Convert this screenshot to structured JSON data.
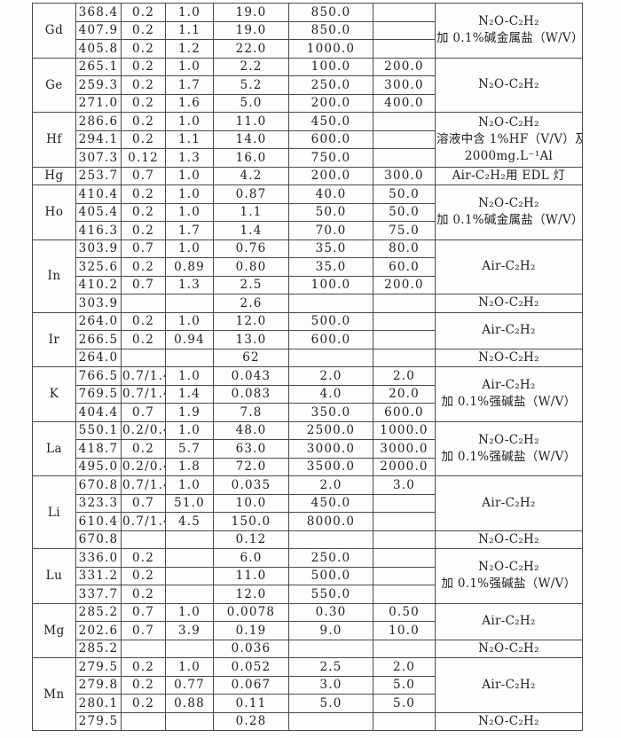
{
  "page": {
    "background": "#fdfdfd",
    "border_color": "#4a4a4a",
    "text_color": "#212121"
  },
  "table": {
    "groups": [
      {
        "element": "Gd",
        "rows": [
          [
            "368.4",
            "0.2",
            "1.0",
            "19.0",
            "850.0",
            ""
          ],
          [
            "407.9",
            "0.2",
            "1.1",
            "19.0",
            "850.0",
            ""
          ],
          [
            "405.8",
            "0.2",
            "1.2",
            "22.0",
            "1000.0",
            ""
          ]
        ],
        "notes": [
          {
            "span": 3,
            "lines": [
              "N₂O-C₂H₂",
              "加 0.1%碱金属盐（W/V）"
            ]
          }
        ]
      },
      {
        "element": "Ge",
        "rows": [
          [
            "265.1",
            "0.2",
            "1.0",
            "2.2",
            "100.0",
            "200.0"
          ],
          [
            "259.3",
            "0.2",
            "1.7",
            "5.2",
            "250.0",
            "300.0"
          ],
          [
            "271.0",
            "0.2",
            "1.6",
            "5.0",
            "200.0",
            "400.0"
          ]
        ],
        "notes": [
          {
            "span": 3,
            "lines": [
              "N₂O-C₂H₂"
            ]
          }
        ]
      },
      {
        "element": "Hf",
        "rows": [
          [
            "286.6",
            "0.2",
            "1.0",
            "11.0",
            "450.0",
            ""
          ],
          [
            "294.1",
            "0.2",
            "1.1",
            "14.0",
            "600.0",
            ""
          ],
          [
            "307.3",
            "0.12",
            "1.3",
            "16.0",
            "750.0",
            ""
          ]
        ],
        "notes": [
          {
            "span": 3,
            "lines": [
              "N₂O-C₂H₂",
              "溶液中含 1%HF（V/V）及",
              "2000mg.L⁻¹Al"
            ]
          }
        ]
      },
      {
        "element": "Hg",
        "rows": [
          [
            "253.7",
            "0.7",
            "1.0",
            "4.2",
            "200.0",
            "300.0"
          ]
        ],
        "notes": [
          {
            "span": 1,
            "lines": [
              "Air-C₂H₂用 EDL 灯"
            ]
          }
        ]
      },
      {
        "element": "Ho",
        "rows": [
          [
            "410.4",
            "0.2",
            "1.0",
            "0.87",
            "40.0",
            "50.0"
          ],
          [
            "405.4",
            "0.2",
            "1.0",
            "1.1",
            "50.0",
            "50.0"
          ],
          [
            "416.3",
            "0.2",
            "1.7",
            "1.4",
            "70.0",
            "75.0"
          ]
        ],
        "notes": [
          {
            "span": 3,
            "lines": [
              "N₂O-C₂H₂",
              "加 0.1%碱金属盐（W/V）"
            ]
          }
        ]
      },
      {
        "element": "In",
        "rows": [
          [
            "303.9",
            "0.7",
            "1.0",
            "0.76",
            "35.0",
            "80.0"
          ],
          [
            "325.6",
            "0.2",
            "0.89",
            "0.80",
            "35.0",
            "60.0"
          ],
          [
            "410.2",
            "0.7",
            "1.3",
            "2.5",
            "100.0",
            "200.0"
          ],
          [
            "303.9",
            "",
            "",
            "2.6",
            "",
            ""
          ]
        ],
        "notes": [
          {
            "span": 3,
            "lines": [
              "Air-C₂H₂"
            ]
          },
          {
            "span": 1,
            "lines": [
              "N₂O-C₂H₂"
            ]
          }
        ]
      },
      {
        "element": "Ir",
        "rows": [
          [
            "264.0",
            "0.2",
            "1.0",
            "12.0",
            "500.0",
            ""
          ],
          [
            "266.5",
            "0.2",
            "0.94",
            "13.0",
            "600.0",
            ""
          ],
          [
            "264.0",
            "",
            "",
            "62",
            "",
            ""
          ]
        ],
        "notes": [
          {
            "span": 2,
            "lines": [
              "Air-C₂H₂"
            ]
          },
          {
            "span": 1,
            "lines": [
              "N₂O-C₂H₂"
            ]
          }
        ]
      },
      {
        "element": "K",
        "rows": [
          [
            "766.5",
            "0.7/1.4",
            "1.0",
            "0.043",
            "2.0",
            "2.0"
          ],
          [
            "769.5",
            "0.7/1.4",
            "1.4",
            "0.083",
            "4.0",
            "20.0"
          ],
          [
            "404.4",
            "0.7",
            "1.9",
            "7.8",
            "350.0",
            "600.0"
          ]
        ],
        "notes": [
          {
            "span": 3,
            "lines": [
              "Air-C₂H₂",
              "加 0.1%强碱盐（W/V）"
            ]
          }
        ]
      },
      {
        "element": "La",
        "rows": [
          [
            "550.1",
            "0.2/0.4",
            "1.0",
            "48.0",
            "2500.0",
            "1000.0"
          ],
          [
            "418.7",
            "0.2",
            "5.7",
            "63.0",
            "3000.0",
            "3000.0"
          ],
          [
            "495.0",
            "0.2/0.4",
            "1.8",
            "72.0",
            "3500.0",
            "2000.0"
          ]
        ],
        "notes": [
          {
            "span": 3,
            "lines": [
              "N₂O-C₂H₂",
              "加 0.1%强碱盐（W/V）"
            ]
          }
        ]
      },
      {
        "element": "Li",
        "rows": [
          [
            "670.8",
            "0.7/1.4",
            "1.0",
            "0.035",
            "2.0",
            "3.0"
          ],
          [
            "323.3",
            "0.7",
            "51.0",
            "10.0",
            "450.0",
            ""
          ],
          [
            "610.4",
            "0.7/1.4",
            "4.5",
            "150.0",
            "8000.0",
            ""
          ],
          [
            "670.8",
            "",
            "",
            "0.12",
            "",
            ""
          ]
        ],
        "notes": [
          {
            "span": 3,
            "lines": [
              "Air-C₂H₂"
            ]
          },
          {
            "span": 1,
            "lines": [
              "N₂O-C₂H₂"
            ]
          }
        ]
      },
      {
        "element": "Lu",
        "rows": [
          [
            "336.0",
            "0.2",
            "",
            "6.0",
            "250.0",
            ""
          ],
          [
            "331.2",
            "0.2",
            "",
            "11.0",
            "500.0",
            ""
          ],
          [
            "337.7",
            "0.2",
            "",
            "12.0",
            "550.0",
            ""
          ]
        ],
        "notes": [
          {
            "span": 3,
            "lines": [
              "N₂O-C₂H₂",
              "加 0.1%强碱盐（W/V）"
            ]
          }
        ]
      },
      {
        "element": "Mg",
        "rows": [
          [
            "285.2",
            "0.7",
            "1.0",
            "0.0078",
            "0.30",
            "0.50"
          ],
          [
            "202.6",
            "0.7",
            "3.9",
            "0.19",
            "9.0",
            "10.0"
          ],
          [
            "285.2",
            "",
            "",
            "0.036",
            "",
            ""
          ]
        ],
        "notes": [
          {
            "span": 2,
            "lines": [
              "Air-C₂H₂"
            ]
          },
          {
            "span": 1,
            "lines": [
              "N₂O-C₂H₂"
            ]
          }
        ]
      },
      {
        "element": "Mn",
        "rows": [
          [
            "279.5",
            "0.2",
            "1.0",
            "0.052",
            "2.5",
            "2.0"
          ],
          [
            "279.8",
            "0.2",
            "0.77",
            "0.067",
            "3.0",
            "5.0"
          ],
          [
            "280.1",
            "0.2",
            "0.88",
            "0.11",
            "5.0",
            "5.0"
          ],
          [
            "279.5",
            "",
            "",
            "0.28",
            "",
            ""
          ]
        ],
        "notes": [
          {
            "span": 3,
            "lines": [
              "Air-C₂H₂"
            ]
          },
          {
            "span": 1,
            "lines": [
              "N₂O-C₂H₂"
            ]
          }
        ]
      }
    ]
  }
}
